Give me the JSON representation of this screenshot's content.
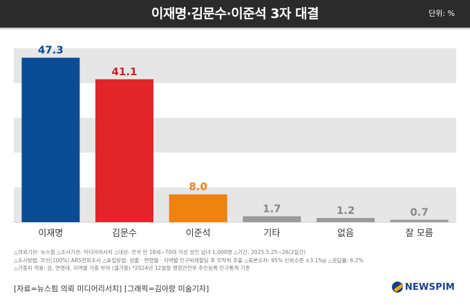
{
  "header": {
    "title": "이재명·김문수·이준석 3자 대결",
    "unit": "단위: %"
  },
  "chart_data": {
    "type": "bar",
    "categories": [
      "이재명",
      "김문수",
      "이준석",
      "기타",
      "없음",
      "잘 모름"
    ],
    "values": [
      47.3,
      41.1,
      8.0,
      1.7,
      1.2,
      0.7
    ],
    "value_labels": [
      "47.3",
      "41.1",
      "8.0",
      "1.7",
      "1.2",
      "0.7"
    ],
    "colors": [
      "#0b4d95",
      "#e2252b",
      "#f0820f",
      "#9a9a9a",
      "#9a9a9a",
      "#9a9a9a"
    ],
    "label_colors": [
      "#0b4d95",
      "#c8232a",
      "#f0820f",
      "#8a8a8a",
      "#8a8a8a",
      "#8a8a8a"
    ],
    "ylim": [
      0,
      50
    ],
    "grid": "horizontal bands",
    "title": "",
    "xlabel": "",
    "ylabel": ""
  },
  "notes": [
    "△의뢰기관: 뉴스핌 △조사기관: 미디어리서치 △대상: 전국 만 18세~70대 이상 성인 남녀 1,000명 △기간: 2025.5.25~26(2일간)",
    "△조사방법: 무선(100%) ARS전화조사 △표집방법: 성별 · 연령별 · 지역별 인구비례할당 후 무작위 추출 △표본오차: 95% 신뢰수준 ±3.1%p △응답률: 6.2%",
    "△가중치 적용: 성, 연령대, 지역별 가중 부여 (셀가중) *2024년 12월말 행정안전부 주민등록 인구통계 기준"
  ],
  "source": "[자료=뉴스핌 의뢰 미디어리서치] [그래픽=김아랑 미술기자]",
  "logo": "NEWSPIM"
}
